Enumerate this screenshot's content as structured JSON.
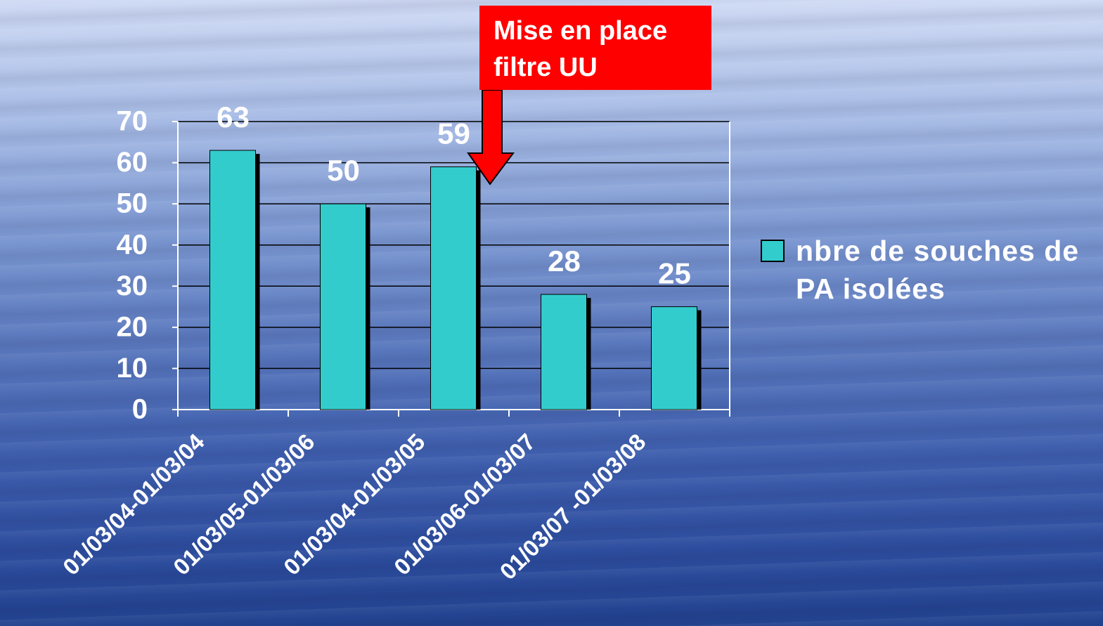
{
  "chart_data": {
    "type": "bar",
    "categories": [
      "01/03/04-01/03/04",
      "01/03/05-01/03/06",
      "01/03/04-01/03/05",
      "01/03/06-01/03/07",
      "01/03/07 -01/03/08"
    ],
    "series": [
      {
        "name": "nbre de souches de PA isolées",
        "color": "#33cccc",
        "values": [
          63,
          50,
          59,
          28,
          25
        ]
      }
    ],
    "ylim": [
      0,
      70
    ],
    "yticks": [
      0,
      10,
      20,
      30,
      40,
      50,
      60,
      70
    ],
    "grid": true,
    "annotation": "Mise en place filtre UU"
  }
}
